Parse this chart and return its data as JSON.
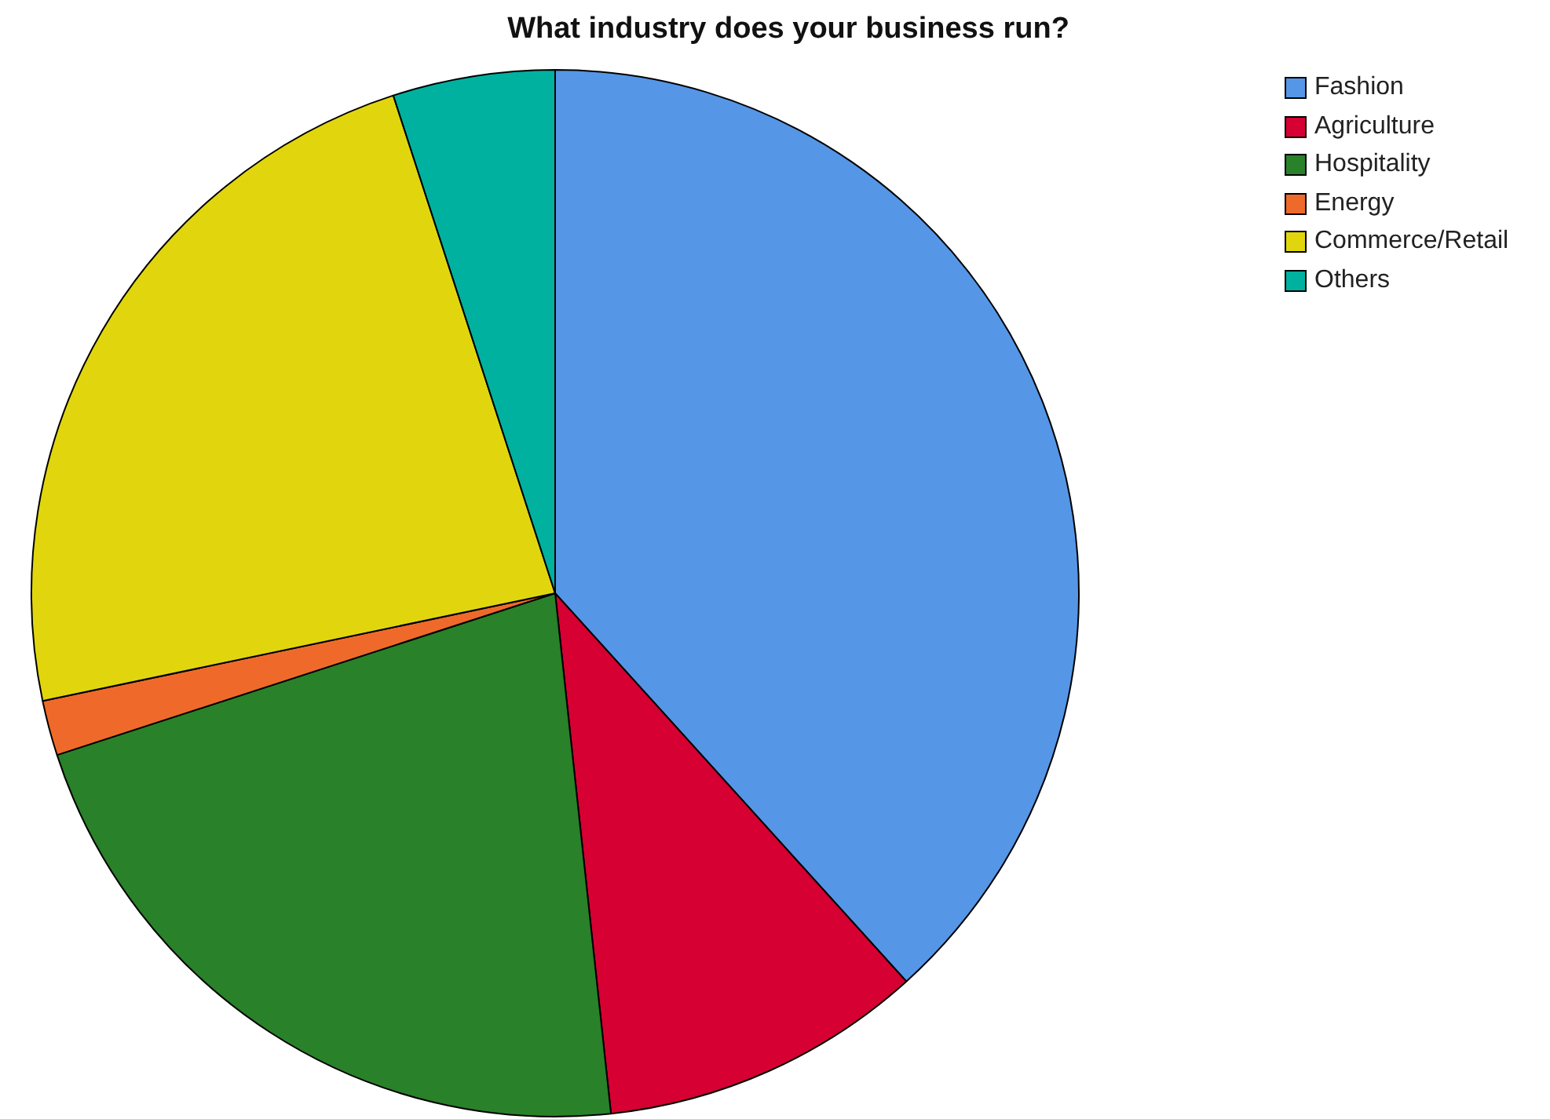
{
  "chart_data": {
    "type": "pie",
    "title": "What industry does your business run?",
    "categories": [
      "Fashion",
      "Agriculture",
      "Hospitality",
      "Energy",
      "Commerce/Retail",
      "Others"
    ],
    "values": [
      38.3,
      10,
      21.7,
      1.7,
      23.3,
      5
    ],
    "colors": [
      "#5596e6",
      "#d60032",
      "#298129",
      "#ef6a2a",
      "#e1d60e",
      "#00b1a0"
    ],
    "legend": "top right"
  }
}
